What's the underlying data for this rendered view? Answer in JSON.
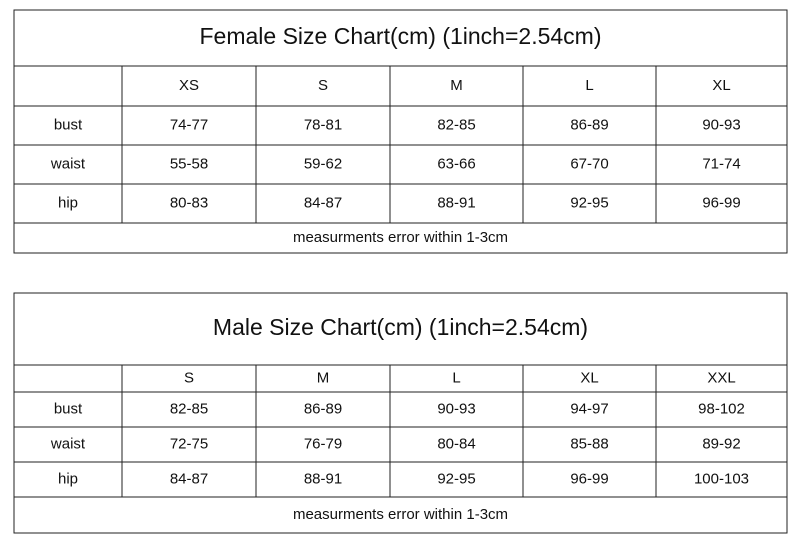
{
  "tables": [
    {
      "title": "Female Size Chart(cm) (1inch=2.54cm)",
      "headers": [
        "XS",
        "S",
        "M",
        "L",
        "XL"
      ],
      "rows": [
        [
          "bust",
          "74-77",
          "78-81",
          "82-85",
          "86-89",
          "90-93"
        ],
        [
          "waist",
          "55-58",
          "59-62",
          "63-66",
          "67-70",
          "71-74"
        ],
        [
          "hip",
          "80-83",
          "84-87",
          "88-91",
          "92-95",
          "96-99"
        ]
      ],
      "note": "measurments error within 1-3cm"
    },
    {
      "title": "Male Size Chart(cm) (1inch=2.54cm)",
      "headers": [
        "S",
        "M",
        "L",
        "XL",
        "XXL"
      ],
      "rows": [
        [
          "bust",
          "82-85",
          "86-89",
          "90-93",
          "94-97",
          "98-102"
        ],
        [
          "waist",
          "72-75",
          "76-79",
          "80-84",
          "85-88",
          "89-92"
        ],
        [
          "hip",
          "84-87",
          "88-91",
          "92-95",
          "96-99",
          "100-103"
        ]
      ],
      "note": "measurments error within 1-3cm"
    }
  ]
}
